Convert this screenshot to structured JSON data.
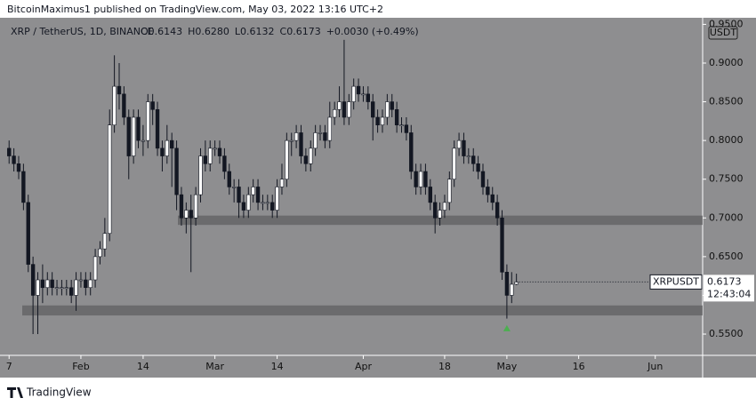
{
  "header": "BitcoinMaximus1 published on TradingView.com, May 03, 2022 13:16 UTC+2",
  "footer": "TradingView",
  "chart_data": {
    "type": "candlestick",
    "symbol_info": "XRP / TetherUS, 1D, BINANCE",
    "ohlc_info": [
      "O0.6143",
      "H0.6280",
      "L0.6132",
      "C0.6173",
      "+0.0030 (+0.49%)"
    ],
    "currency": "USDT",
    "price_tag": {
      "name": "XRPUSDT",
      "value": 0.6173,
      "countdown": "12:43:04"
    },
    "up_color": "#ffffff",
    "down_color": "#131722",
    "x": [
      0,
      1,
      2,
      3,
      4,
      5,
      6,
      7,
      8,
      9,
      10,
      11,
      12,
      13,
      14,
      15,
      16,
      17,
      18,
      19,
      20,
      21,
      22,
      23,
      24,
      25,
      26,
      27,
      28,
      29,
      30,
      31,
      32,
      33,
      34,
      35,
      36,
      37,
      38,
      39,
      40,
      41,
      42,
      43,
      44,
      45,
      46,
      47,
      48,
      49,
      50,
      51,
      52,
      53,
      54,
      55,
      56,
      57,
      58,
      59,
      60,
      61,
      62,
      63,
      64,
      65,
      66,
      67,
      68,
      69,
      70,
      71,
      72,
      73,
      74,
      75,
      76,
      77,
      78,
      79,
      80,
      81,
      82,
      83,
      84,
      85,
      86,
      87,
      88,
      89,
      90,
      91,
      92,
      93,
      94,
      95,
      96,
      97,
      98,
      99,
      100,
      101,
      102,
      103,
      104,
      105,
      106
    ],
    "open": [
      0.79,
      0.78,
      0.77,
      0.76,
      0.72,
      0.64,
      0.6,
      0.62,
      0.61,
      0.62,
      0.61,
      0.61,
      0.61,
      0.61,
      0.6,
      0.62,
      0.62,
      0.61,
      0.62,
      0.65,
      0.66,
      0.68,
      0.82,
      0.87,
      0.86,
      0.83,
      0.78,
      0.83,
      0.8,
      0.8,
      0.85,
      0.84,
      0.79,
      0.78,
      0.8,
      0.79,
      0.73,
      0.7,
      0.71,
      0.7,
      0.73,
      0.78,
      0.77,
      0.79,
      0.79,
      0.78,
      0.76,
      0.74,
      0.74,
      0.72,
      0.71,
      0.73,
      0.74,
      0.72,
      0.72,
      0.72,
      0.71,
      0.74,
      0.75,
      0.8,
      0.8,
      0.81,
      0.78,
      0.77,
      0.79,
      0.81,
      0.81,
      0.8,
      0.83,
      0.84,
      0.85,
      0.83,
      0.85,
      0.87,
      0.86,
      0.86,
      0.85,
      0.83,
      0.82,
      0.83,
      0.85,
      0.84,
      0.82,
      0.82,
      0.81,
      0.76,
      0.74,
      0.76,
      0.74,
      0.72,
      0.7,
      0.71,
      0.72,
      0.75,
      0.79,
      0.8,
      0.78,
      0.78,
      0.77,
      0.76,
      0.74,
      0.73,
      0.72,
      0.7,
      0.63,
      0.6,
      0.6143
    ],
    "high": [
      0.8,
      0.79,
      0.78,
      0.77,
      0.73,
      0.65,
      0.63,
      0.64,
      0.63,
      0.63,
      0.62,
      0.62,
      0.62,
      0.62,
      0.63,
      0.63,
      0.63,
      0.63,
      0.66,
      0.67,
      0.7,
      0.84,
      0.91,
      0.9,
      0.87,
      0.84,
      0.84,
      0.84,
      0.82,
      0.86,
      0.86,
      0.85,
      0.8,
      0.82,
      0.81,
      0.8,
      0.74,
      0.72,
      0.73,
      0.74,
      0.79,
      0.8,
      0.8,
      0.8,
      0.8,
      0.79,
      0.77,
      0.75,
      0.75,
      0.73,
      0.74,
      0.75,
      0.75,
      0.73,
      0.73,
      0.73,
      0.75,
      0.77,
      0.81,
      0.81,
      0.82,
      0.82,
      0.79,
      0.8,
      0.82,
      0.82,
      0.82,
      0.85,
      0.85,
      0.87,
      0.93,
      0.86,
      0.88,
      0.88,
      0.87,
      0.87,
      0.86,
      0.84,
      0.84,
      0.86,
      0.86,
      0.85,
      0.83,
      0.83,
      0.82,
      0.77,
      0.77,
      0.77,
      0.75,
      0.73,
      0.72,
      0.73,
      0.76,
      0.8,
      0.81,
      0.81,
      0.79,
      0.79,
      0.78,
      0.77,
      0.75,
      0.74,
      0.73,
      0.71,
      0.64,
      0.63,
      0.628
    ],
    "low": [
      0.77,
      0.76,
      0.75,
      0.71,
      0.63,
      0.55,
      0.55,
      0.59,
      0.6,
      0.6,
      0.6,
      0.6,
      0.6,
      0.59,
      0.58,
      0.61,
      0.6,
      0.6,
      0.61,
      0.64,
      0.65,
      0.67,
      0.81,
      0.84,
      0.82,
      0.75,
      0.77,
      0.79,
      0.78,
      0.79,
      0.82,
      0.78,
      0.76,
      0.77,
      0.74,
      0.71,
      0.69,
      0.68,
      0.63,
      0.69,
      0.72,
      0.76,
      0.76,
      0.78,
      0.77,
      0.75,
      0.73,
      0.72,
      0.7,
      0.7,
      0.7,
      0.72,
      0.71,
      0.71,
      0.71,
      0.7,
      0.7,
      0.73,
      0.74,
      0.78,
      0.79,
      0.77,
      0.76,
      0.76,
      0.78,
      0.8,
      0.79,
      0.79,
      0.82,
      0.83,
      0.82,
      0.82,
      0.84,
      0.85,
      0.85,
      0.84,
      0.8,
      0.81,
      0.81,
      0.82,
      0.83,
      0.81,
      0.81,
      0.8,
      0.75,
      0.73,
      0.73,
      0.73,
      0.71,
      0.68,
      0.69,
      0.7,
      0.71,
      0.74,
      0.78,
      0.77,
      0.77,
      0.76,
      0.75,
      0.73,
      0.72,
      0.71,
      0.69,
      0.62,
      0.57,
      0.59,
      0.6132
    ],
    "close": [
      0.78,
      0.77,
      0.76,
      0.72,
      0.64,
      0.6,
      0.62,
      0.61,
      0.62,
      0.61,
      0.61,
      0.61,
      0.61,
      0.6,
      0.62,
      0.62,
      0.61,
      0.62,
      0.65,
      0.66,
      0.68,
      0.82,
      0.87,
      0.86,
      0.83,
      0.78,
      0.83,
      0.8,
      0.8,
      0.85,
      0.84,
      0.79,
      0.78,
      0.8,
      0.79,
      0.73,
      0.7,
      0.71,
      0.7,
      0.73,
      0.78,
      0.77,
      0.79,
      0.79,
      0.78,
      0.76,
      0.74,
      0.74,
      0.72,
      0.71,
      0.73,
      0.74,
      0.72,
      0.72,
      0.72,
      0.71,
      0.74,
      0.75,
      0.8,
      0.8,
      0.81,
      0.78,
      0.77,
      0.79,
      0.81,
      0.81,
      0.8,
      0.83,
      0.84,
      0.85,
      0.83,
      0.85,
      0.87,
      0.86,
      0.86,
      0.85,
      0.83,
      0.82,
      0.83,
      0.85,
      0.84,
      0.82,
      0.82,
      0.81,
      0.76,
      0.74,
      0.76,
      0.74,
      0.72,
      0.7,
      0.71,
      0.72,
      0.75,
      0.79,
      0.8,
      0.78,
      0.78,
      0.77,
      0.76,
      0.74,
      0.73,
      0.72,
      0.7,
      0.63,
      0.6,
      0.6143,
      0.6173
    ],
    "zones": [
      [
        0.691,
        0.703
      ],
      [
        0.574,
        0.587
      ]
    ],
    "marker": {
      "x": 104,
      "y": 0.557,
      "color": "#4caf50"
    },
    "xlim": [
      -1.9,
      144.9
    ],
    "ylim": [
      0.5225,
      0.9585
    ],
    "xticks": [
      {
        "value": 0,
        "label": "7"
      },
      {
        "value": 15,
        "label": "Feb"
      },
      {
        "value": 28,
        "label": "14"
      },
      {
        "value": 43,
        "label": "Mar"
      },
      {
        "value": 56,
        "label": "14"
      },
      {
        "value": 74,
        "label": "Apr"
      },
      {
        "value": 91,
        "label": "18"
      },
      {
        "value": 104,
        "label": "May"
      },
      {
        "value": 119,
        "label": "16"
      },
      {
        "value": 135,
        "label": "Jun"
      }
    ],
    "yticks": [
      {
        "value": 0.55,
        "label": "0.5500"
      },
      {
        "value": 0.6,
        "label": "0.6000"
      },
      {
        "value": 0.65,
        "label": "0.6500"
      },
      {
        "value": 0.7,
        "label": "0.7000"
      },
      {
        "value": 0.75,
        "label": "0.7500"
      },
      {
        "value": 0.8,
        "label": "0.8000"
      },
      {
        "value": 0.85,
        "label": "0.8500"
      },
      {
        "value": 0.9,
        "label": "0.9000"
      },
      {
        "value": 0.95,
        "label": "0.9500"
      }
    ]
  }
}
